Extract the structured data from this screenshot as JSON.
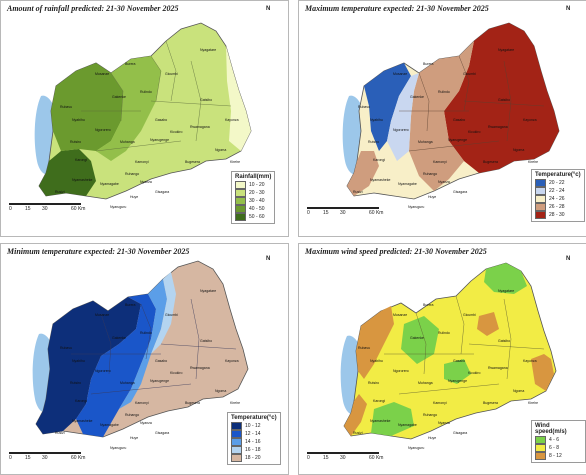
{
  "units_scale": {
    "ticks": [
      "0",
      "15",
      "30",
      "60 Km"
    ]
  },
  "north_label": "N",
  "panels": [
    {
      "title": "Amount of rainfall predicted: 21-30 November 2025",
      "legend_title": "Rainfall(mm)",
      "classes": [
        {
          "label": "10 - 20",
          "color": "#f3f8c8"
        },
        {
          "label": "20 - 30",
          "color": "#c9e27c"
        },
        {
          "label": "30 - 40",
          "color": "#93bf4a"
        },
        {
          "label": "40 - 50",
          "color": "#6b9a2e"
        },
        {
          "label": "50 - 60",
          "color": "#3f6d1c"
        }
      ]
    },
    {
      "title": "Maximum temperature expected: 21-30 November 2025",
      "legend_title": "Temperature(°c)",
      "classes": [
        {
          "label": "20 - 22",
          "color": "#2a5fb8"
        },
        {
          "label": "22 - 24",
          "color": "#c9d7f0"
        },
        {
          "label": "24 - 26",
          "color": "#f8efc8"
        },
        {
          "label": "26 - 28",
          "color": "#cf9d7e"
        },
        {
          "label": "28 - 30",
          "color": "#a32316"
        }
      ]
    },
    {
      "title": "Minimum temperature expected: 21-30 November 2025",
      "legend_title": "Temperature(°c)",
      "classes": [
        {
          "label": "10 - 12",
          "color": "#0d2f7a"
        },
        {
          "label": "12 - 14",
          "color": "#1a56c9"
        },
        {
          "label": "14 - 16",
          "color": "#5b9ee8"
        },
        {
          "label": "16 - 18",
          "color": "#b4d4f0"
        },
        {
          "label": "18 - 20",
          "color": "#d6b7a2"
        }
      ]
    },
    {
      "title": "Maximum wind speed predicted: 21-30 November 2025",
      "legend_title": "Wind speed(m/s)",
      "classes": [
        {
          "label": "4 - 6",
          "color": "#7bd14a"
        },
        {
          "label": "6 - 8",
          "color": "#f2ec45"
        },
        {
          "label": "8 - 12",
          "color": "#d89640"
        }
      ]
    }
  ],
  "districts": [
    "Nyagatare",
    "Gicumbi",
    "Rubavu",
    "Musanze",
    "Burera",
    "Gakenke",
    "Nyabihu",
    "Rulindo",
    "Gatsibo",
    "Kayonza",
    "Ngororero",
    "Muhanga",
    "Gasabo",
    "Kicukiro",
    "Rwamagana",
    "Rutsiro",
    "Karongi",
    "Kamonyi",
    "Nyarugenge",
    "Bugesera",
    "Ngoma",
    "Kirehe",
    "Ruhango",
    "Nyanza",
    "Nyamasheke",
    "Rusizi",
    "Nyamagabe",
    "Huye",
    "Gisagara",
    "Nyaruguru"
  ]
}
